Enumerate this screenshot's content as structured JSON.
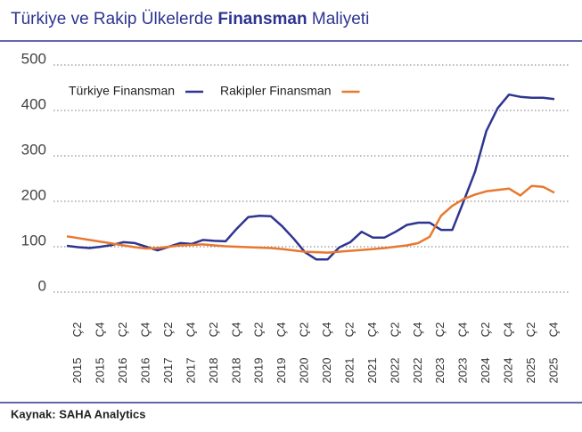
{
  "chart_data": {
    "type": "line",
    "title_parts": [
      "Türkiye ve Rakip Ülkelerde",
      "Finansman",
      "Maliyeti"
    ],
    "source": "Kaynak: SAHA Analytics",
    "quarters": [
      null,
      "Ç2",
      null,
      "Ç4",
      null,
      "Ç2",
      null,
      "Ç4",
      null,
      "Ç2",
      null,
      "Ç4",
      null,
      "Ç2",
      null,
      "Ç4",
      null,
      "Ç2",
      null,
      "Ç4",
      null,
      "Ç2",
      null,
      "Ç4",
      null,
      "Ç2",
      null,
      "Ç4",
      null,
      "Ç2",
      null,
      "Ç4",
      null,
      "Ç2",
      null,
      "Ç4",
      null,
      "Ç2",
      null,
      "Ç4",
      null,
      "Ç2",
      null,
      "Ç4"
    ],
    "years": [
      null,
      "2015",
      null,
      "2015",
      null,
      "2016",
      null,
      "2016",
      null,
      "2017",
      null,
      "2017",
      null,
      "2018",
      null,
      "2018",
      null,
      "2019",
      null,
      "2019",
      null,
      "2020",
      null,
      "2020",
      null,
      "2021",
      null,
      "2021",
      null,
      "2022",
      null,
      "2022",
      null,
      "2023",
      null,
      "2023",
      null,
      "2024",
      null,
      "2024",
      null,
      "2025",
      null,
      "2025"
    ],
    "series": [
      {
        "name": "Türkiye Finansman",
        "color": "#2e3590",
        "values": [
          102,
          99,
          97,
          100,
          104,
          110,
          108,
          100,
          92,
          100,
          108,
          106,
          115,
          113,
          112,
          140,
          165,
          168,
          167,
          145,
          118,
          88,
          72,
          72,
          98,
          110,
          133,
          120,
          120,
          133,
          148,
          153,
          153,
          137,
          137,
          200,
          265,
          355,
          405,
          435,
          430,
          428,
          428,
          425
        ]
      },
      {
        "name": "Rakipler Finansman",
        "color": "#e8782f",
        "values": [
          123,
          119,
          115,
          111,
          107,
          103,
          99,
          96,
          97,
          100,
          103,
          104,
          105,
          103,
          101,
          100,
          99,
          98,
          97,
          95,
          92,
          89,
          88,
          87,
          89,
          91,
          93,
          95,
          97,
          100,
          103,
          108,
          122,
          168,
          190,
          205,
          215,
          222,
          225,
          228,
          213,
          234,
          232,
          219
        ]
      }
    ],
    "ylim": [
      0,
      500
    ],
    "yticks": [
      0,
      100,
      200,
      300,
      400,
      500
    ],
    "grid": true,
    "legend": "top-left"
  }
}
